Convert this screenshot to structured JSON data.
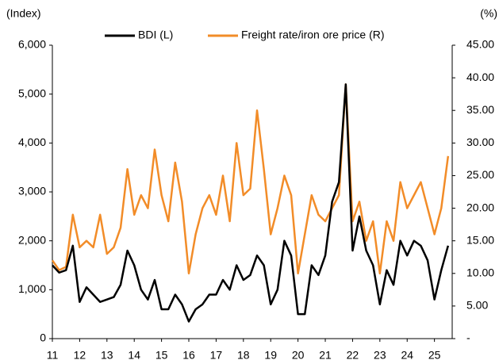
{
  "chart_data": {
    "type": "line",
    "y_label": "(Index)",
    "y2_label": "(%)",
    "x": [
      11,
      11.25,
      11.5,
      11.75,
      12,
      12.25,
      12.5,
      12.75,
      13,
      13.25,
      13.5,
      13.75,
      14,
      14.25,
      14.5,
      14.75,
      15,
      15.25,
      15.5,
      15.75,
      16,
      16.25,
      16.5,
      16.75,
      17,
      17.25,
      17.5,
      17.75,
      18,
      18.25,
      18.5,
      18.75,
      19,
      19.25,
      19.5,
      19.75,
      20,
      20.25,
      20.5,
      20.75,
      21,
      21.25,
      21.5,
      21.75,
      22,
      22.25,
      22.5,
      22.75,
      23,
      23.25,
      23.5,
      23.75,
      24,
      24.25,
      24.5,
      24.75,
      25,
      25.25,
      25.5
    ],
    "series": [
      {
        "name": "BDI (L)",
        "color": "#000000",
        "values": [
          1500,
          1350,
          1400,
          1900,
          750,
          1050,
          900,
          750,
          800,
          850,
          1100,
          1800,
          1500,
          1000,
          800,
          1200,
          600,
          600,
          900,
          700,
          350,
          600,
          700,
          900,
          900,
          1200,
          1000,
          1500,
          1200,
          1300,
          1700,
          1500,
          700,
          1000,
          2000,
          1700,
          500,
          500,
          1500,
          1300,
          1700,
          2800,
          3200,
          5200,
          1800,
          2500,
          1800,
          1500,
          700,
          1400,
          1100,
          2000,
          1700,
          2000,
          1900,
          1600,
          800,
          1400,
          1900
        ]
      },
      {
        "name": "Freight rate/iron ore price (R)",
        "color": "#f28c28",
        "axis": "y2",
        "values": [
          12,
          10.5,
          11,
          19,
          14,
          15,
          14,
          19,
          13,
          14,
          17,
          26,
          19,
          22,
          20,
          29,
          22,
          18,
          27,
          21,
          10,
          16,
          20,
          22,
          19,
          25,
          18,
          30,
          22,
          23,
          35,
          26,
          16,
          20,
          25,
          22,
          10,
          16,
          22,
          19,
          18,
          20,
          22,
          39,
          18,
          21,
          15,
          18,
          10,
          18,
          15,
          24,
          20,
          22,
          24,
          20,
          16,
          20,
          28
        ]
      }
    ],
    "xlim": [
      11,
      25.65
    ],
    "xticks": [
      11,
      12,
      13,
      14,
      15,
      16,
      17,
      18,
      19,
      20,
      21,
      22,
      23,
      24,
      25
    ],
    "ylim": [
      0,
      6000
    ],
    "yticks": [
      0,
      {
        "value": 1000,
        "label": "1,000"
      },
      {
        "value": 2000,
        "label": "2,000"
      },
      {
        "value": 3000,
        "label": "3,000"
      },
      {
        "value": 4000,
        "label": "4,000"
      },
      {
        "value": 5000,
        "label": "5,000"
      },
      {
        "value": 6000,
        "label": "6,000"
      }
    ],
    "y2lim": [
      0,
      45
    ],
    "y2ticks": [
      {
        "value": 0,
        "label": "-"
      },
      {
        "value": 5,
        "label": "5.00"
      },
      {
        "value": 10,
        "label": "10.00"
      },
      {
        "value": 15,
        "label": "15.00"
      },
      {
        "value": 20,
        "label": "20.00"
      },
      {
        "value": 25,
        "label": "25.00"
      },
      {
        "value": 30,
        "label": "30.00"
      },
      {
        "value": 35,
        "label": "35.00"
      },
      {
        "value": 40,
        "label": "40.00"
      },
      {
        "value": 45,
        "label": "45.00"
      }
    ]
  }
}
